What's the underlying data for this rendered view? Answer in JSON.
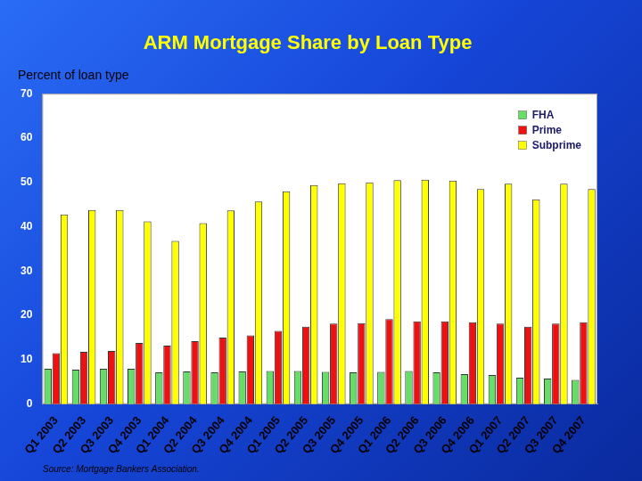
{
  "chart_data": {
    "type": "bar",
    "title": "ARM Mortgage Share by Loan Type",
    "subtitle": "Percent of loan type",
    "source": "Source: Mortgage Bankers Association.",
    "categories": [
      "Q1 2003",
      "Q2 2003",
      "Q3 2003",
      "Q4 2003",
      "Q1 2004",
      "Q2 2004",
      "Q3 2004",
      "Q4 2004",
      "Q1 2005",
      "Q2 2005",
      "Q3 2005",
      "Q4 2005",
      "Q1 2006",
      "Q2 2006",
      "Q3 2006",
      "Q4 2006",
      "Q1 2007",
      "Q2 2007",
      "Q3 2007",
      "Q4 2007"
    ],
    "series": [
      {
        "name": "FHA",
        "color": "#66dd66",
        "values": [
          8,
          7.8,
          8,
          8,
          7.2,
          7.4,
          7.2,
          7.4,
          7.5,
          7.5,
          7.3,
          7.2,
          7.3,
          7.5,
          7.2,
          6.8,
          6.6,
          6,
          5.8,
          5.5
        ]
      },
      {
        "name": "Prime",
        "color": "#ee1111",
        "values": [
          11.5,
          11.8,
          12,
          13.8,
          13.2,
          14.2,
          15,
          15.5,
          16.5,
          17.5,
          18.2,
          18.3,
          19.2,
          18.7,
          18.7,
          18.5,
          18.2,
          17.5,
          18.2,
          18.5
        ]
      },
      {
        "name": "Subprime",
        "color": "#ffff00",
        "values": [
          42.8,
          43.8,
          43.8,
          41.2,
          36.8,
          40.8,
          43.7,
          45.7,
          48,
          49.4,
          49.8,
          50,
          50.5,
          50.6,
          50.4,
          48.5,
          49.7,
          46.2,
          49.7,
          48.5
        ]
      }
    ],
    "ylim": [
      0,
      70
    ],
    "yticks": [
      0,
      10,
      20,
      30,
      40,
      50,
      60,
      70
    ],
    "grid": false,
    "legend": "top-right"
  }
}
